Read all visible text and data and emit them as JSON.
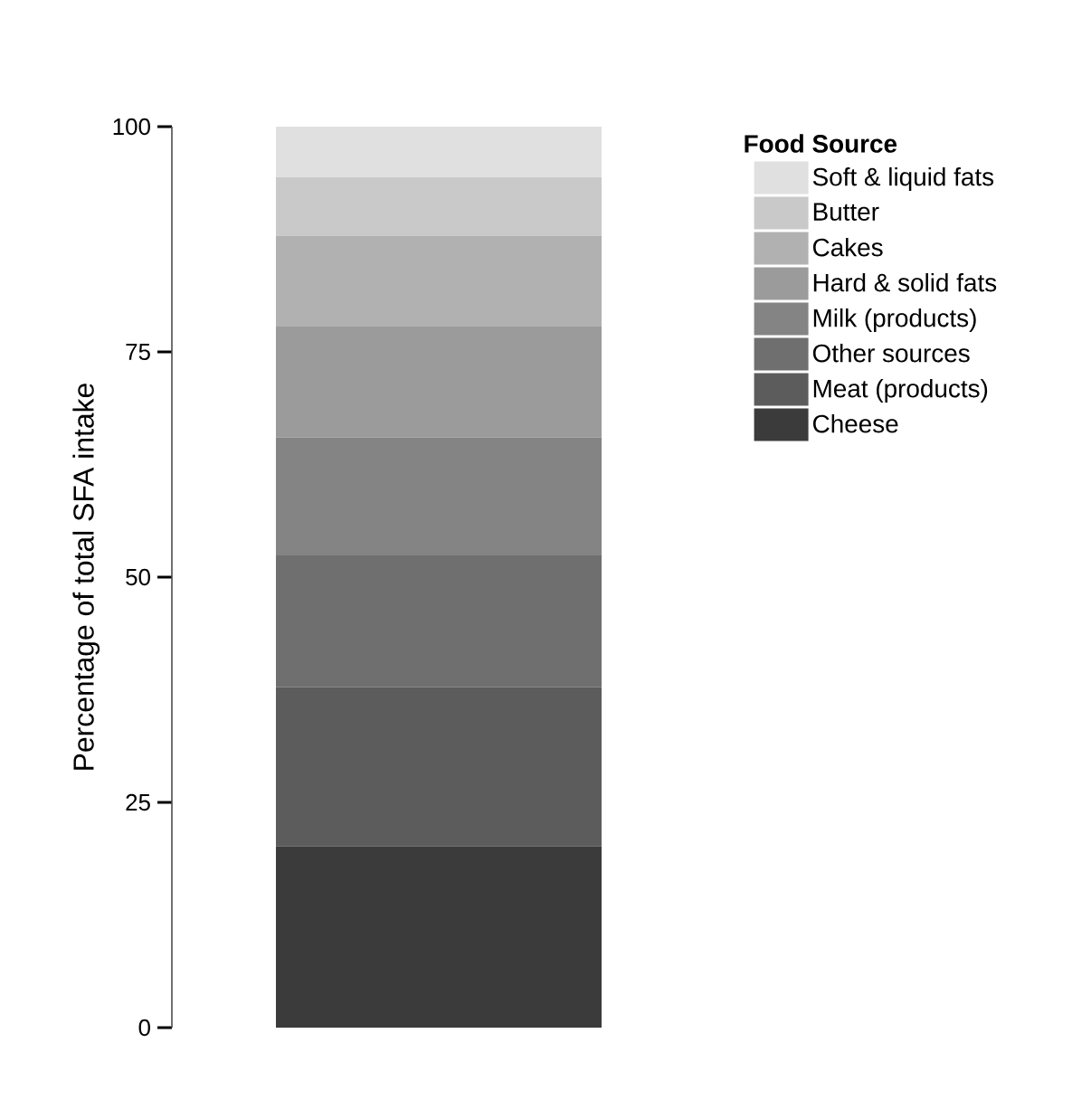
{
  "chart_data": {
    "type": "bar",
    "stacked": true,
    "ylabel": "Percentage of total SFA intake",
    "legend_title": "Food Source",
    "legend": "top right",
    "categories": [
      null
    ],
    "ylim": [
      0,
      100
    ],
    "yticks": [
      0,
      25,
      50,
      75,
      100
    ],
    "series": [
      {
        "name": "Cheese",
        "color": "#3b3b3b",
        "values": [
          20.1
        ]
      },
      {
        "name": "Meat (products)",
        "color": "#5c5c5c",
        "values": [
          17.7
        ]
      },
      {
        "name": "Other sources",
        "color": "#6f6f6f",
        "values": [
          14.6
        ]
      },
      {
        "name": "Milk (products)",
        "color": "#848484",
        "values": [
          13.1
        ]
      },
      {
        "name": "Hard & solid fats",
        "color": "#9b9b9b",
        "values": [
          12.3
        ]
      },
      {
        "name": "Cakes",
        "color": "#b1b1b1",
        "values": [
          10.1
        ]
      },
      {
        "name": "Butter",
        "color": "#c9c9c9",
        "values": [
          6.5
        ]
      },
      {
        "name": "Soft & liquid fats",
        "color": "#e0e0e0",
        "values": [
          5.6
        ]
      }
    ]
  }
}
